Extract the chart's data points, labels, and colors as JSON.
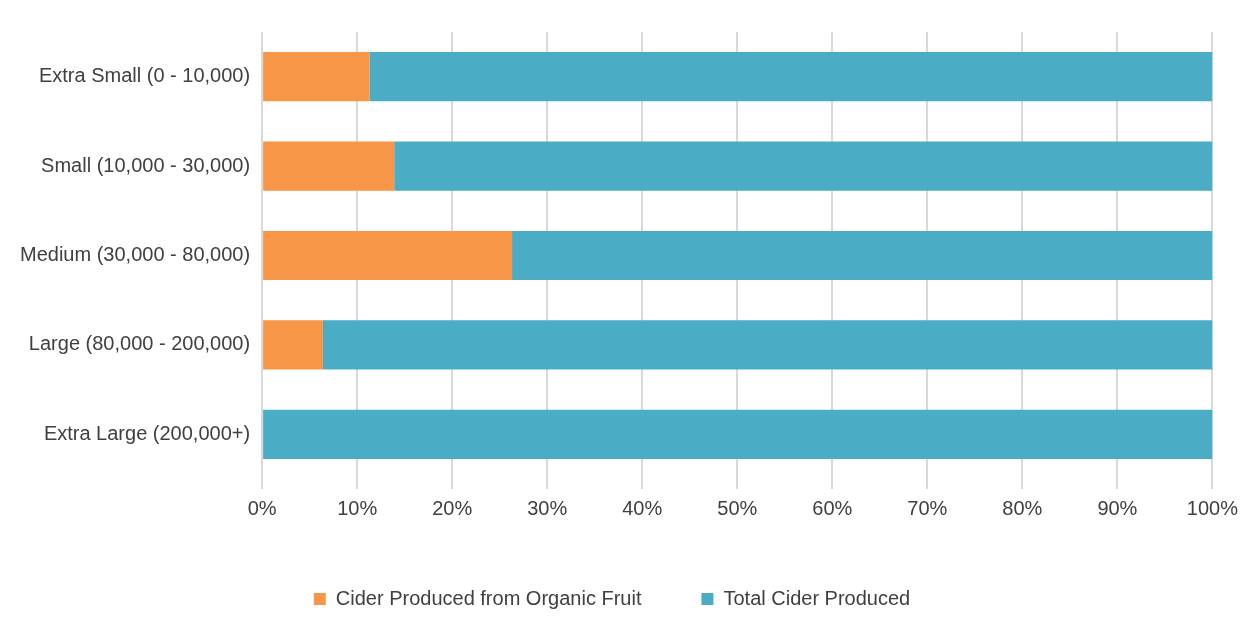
{
  "chart_data": {
    "type": "bar",
    "orientation": "horizontal",
    "stacked": true,
    "categories": [
      "Extra Small (0 - 10,000)",
      "Small (10,000 - 30,000)",
      "Medium (30,000 - 80,000)",
      "Large (80,000 - 200,000)",
      "Extra Large (200,000+)"
    ],
    "series": [
      {
        "name": "Cider Produced from Organic Fruit",
        "color": "#f79646",
        "values": [
          11.3,
          13.9,
          26.3,
          6.4,
          0
        ]
      },
      {
        "name": "Total Cider Produced",
        "color": "#4bacc6",
        "values": [
          88.7,
          86.1,
          73.7,
          93.6,
          100
        ]
      }
    ],
    "xlim": [
      0,
      100
    ],
    "xticks": [
      {
        "value": 0,
        "label": "0%"
      },
      {
        "value": 10,
        "label": "10%"
      },
      {
        "value": 20,
        "label": "20%"
      },
      {
        "value": 30,
        "label": "30%"
      },
      {
        "value": 40,
        "label": "40%"
      },
      {
        "value": 50,
        "label": "50%"
      },
      {
        "value": 60,
        "label": "60%"
      },
      {
        "value": 70,
        "label": "70%"
      },
      {
        "value": 80,
        "label": "80%"
      },
      {
        "value": 90,
        "label": "90%"
      },
      {
        "value": 100,
        "label": "100%"
      }
    ],
    "grid": "x",
    "legend": "bottom"
  }
}
